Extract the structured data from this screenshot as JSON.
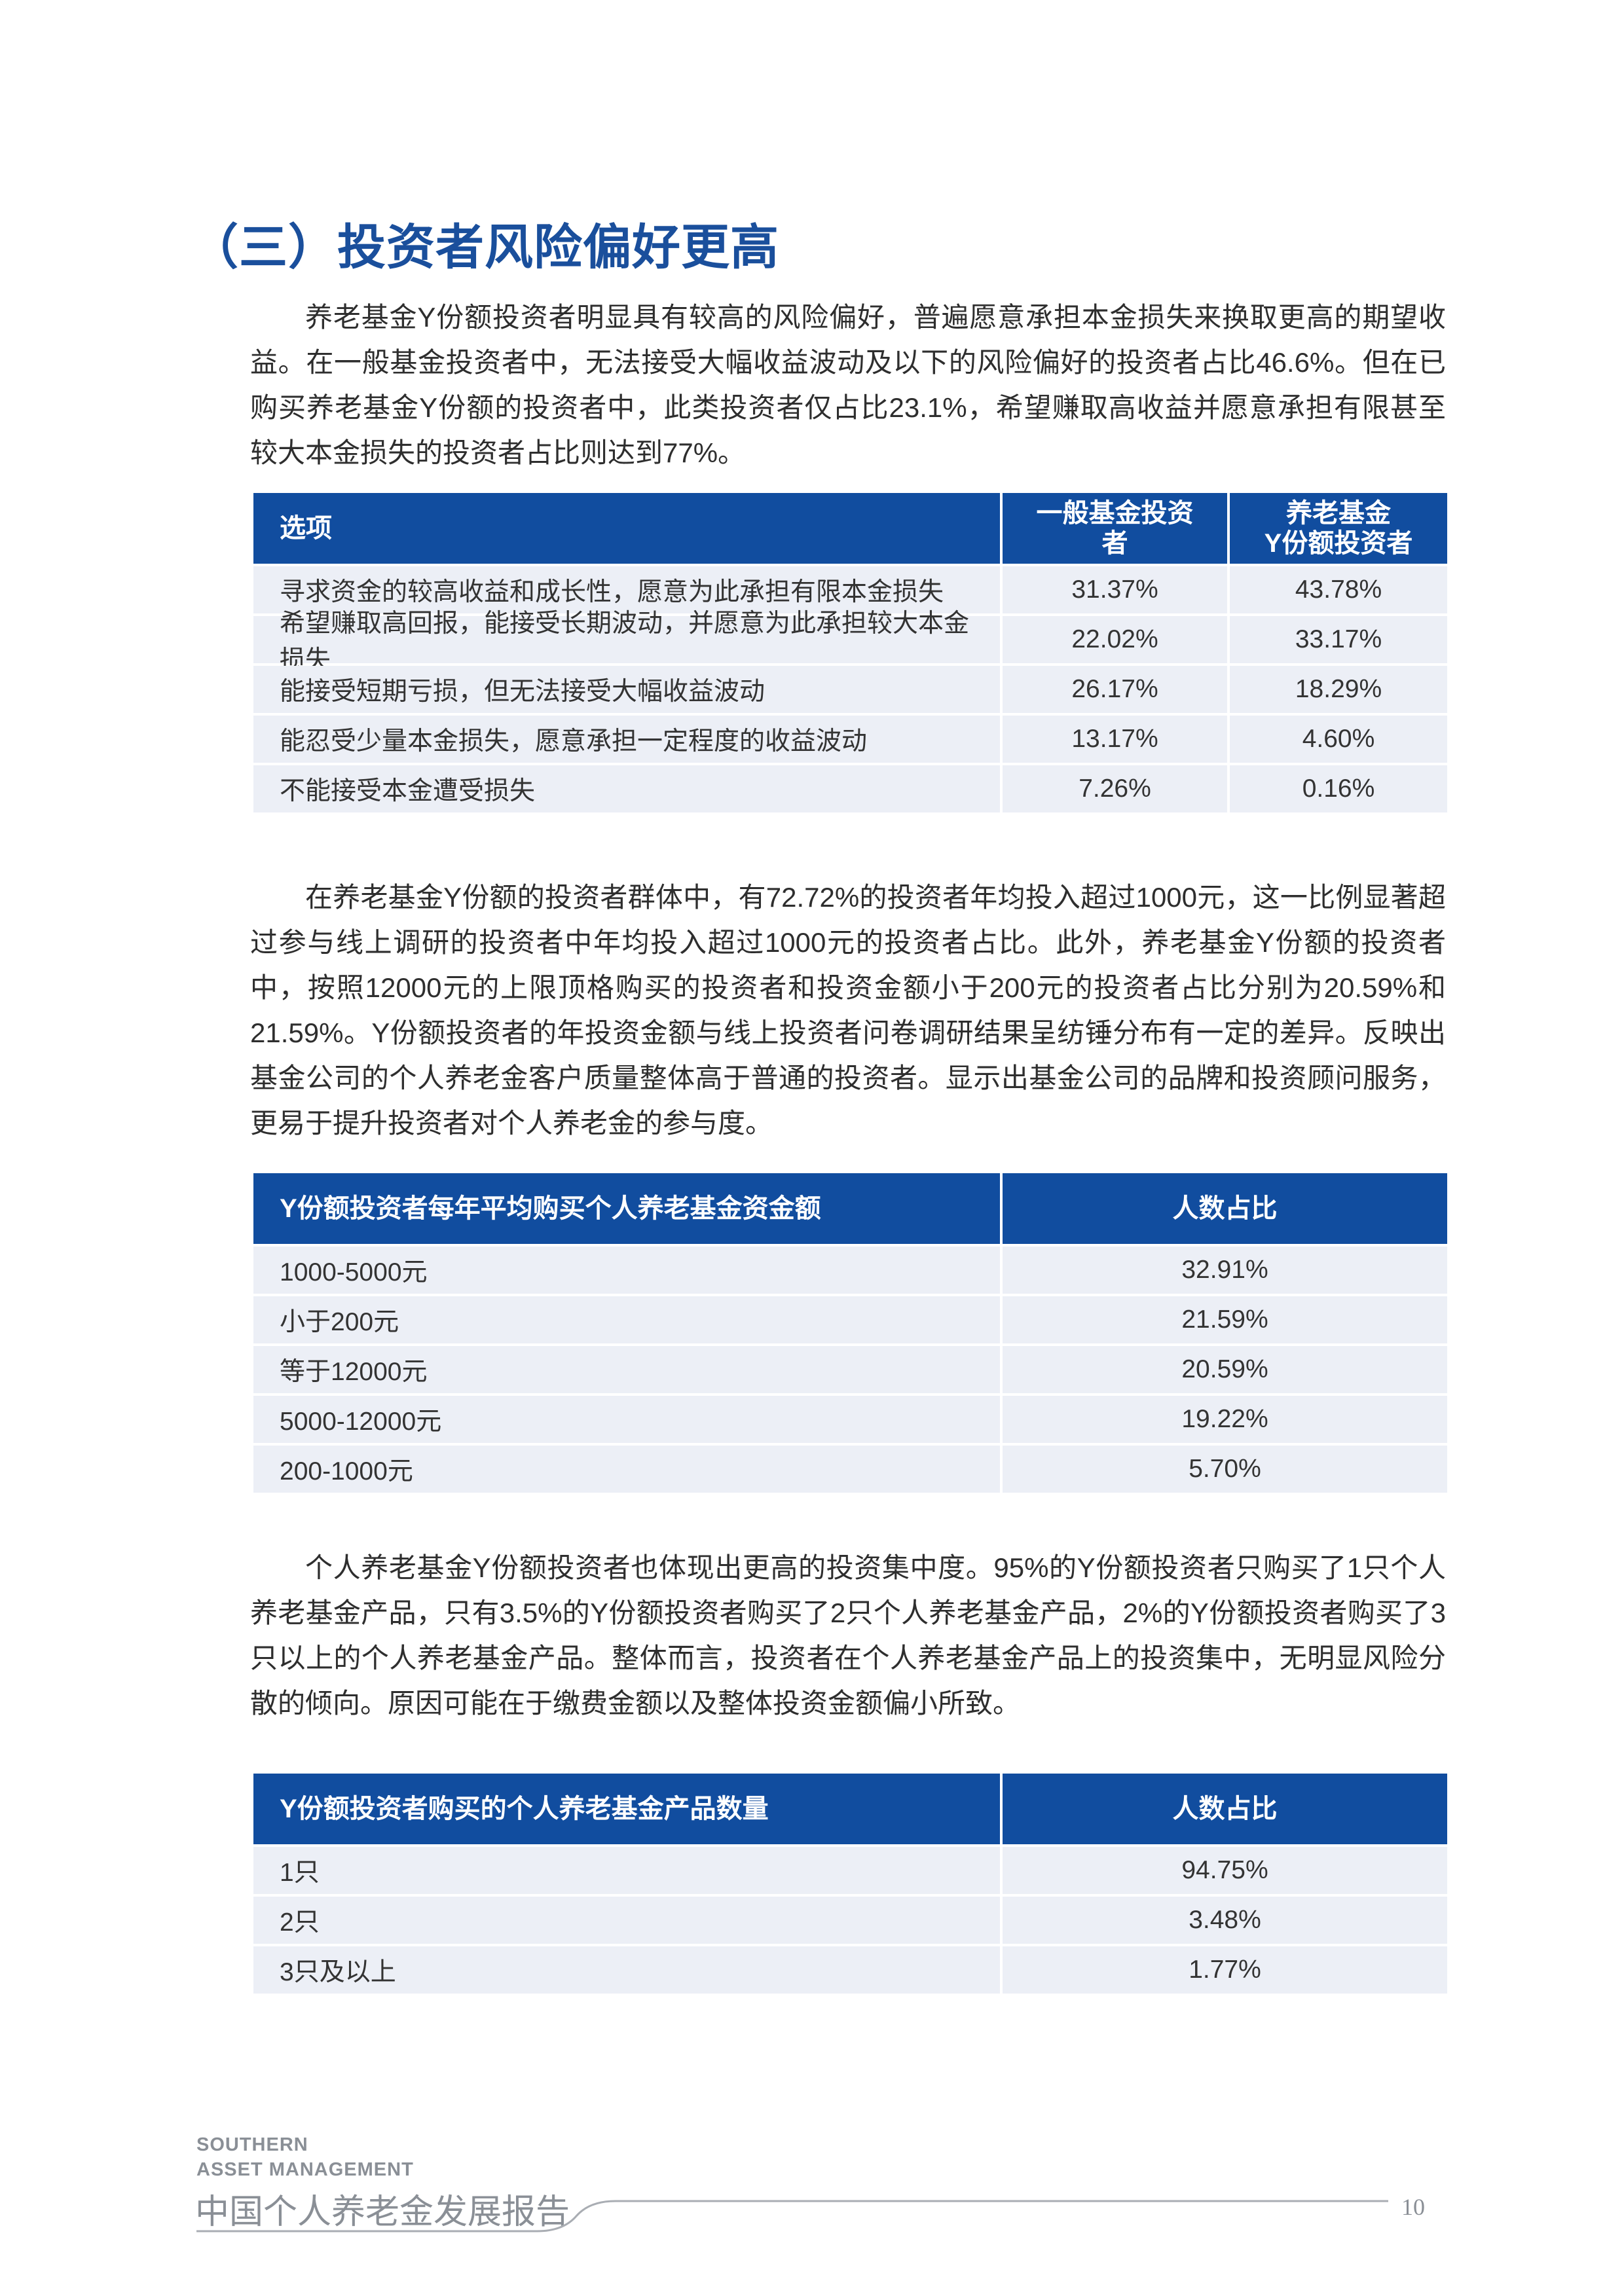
{
  "heading": "（三）投资者风险偏好更高",
  "paragraphs": [
    "养老基金Y份额投资者明显具有较高的风险偏好，普遍愿意承担本金损失来换取更高的期望收益。在一般基金投资者中，无法接受大幅收益波动及以下的风险偏好的投资者占比46.6%。但在已购买养老基金Y份额的投资者中，此类投资者仅占比23.1%，希望赚取高收益并愿意承担有限甚至较大本金损失的投资者占比则达到77%。",
    "在养老基金Y份额的投资者群体中，有72.72%的投资者年均投入超过1000元，这一比例显著超过参与线上调研的投资者中年均投入超过1000元的投资者占比。此外，养老基金Y份额的投资者中，按照12000元的上限顶格购买的投资者和投资金额小于200元的投资者占比分别为20.59%和21.59%。Y份额投资者的年投资金额与线上投资者问卷调研结果呈纺锤分布有一定的差异。反映出基金公司的个人养老金客户质量整体高于普通的投资者。显示出基金公司的品牌和投资顾问服务，更易于提升投资者对个人养老金的参与度。",
    "个人养老基金Y份额投资者也体现出更高的投资集中度。95%的Y份额投资者只购买了1只个人养老基金产品，只有3.5%的Y份额投资者购买了2只个人养老基金产品，2%的Y份额投资者购买了3只以上的个人养老基金产品。整体而言，投资者在个人养老基金产品上的投资集中，无明显风险分散的倾向。原因可能在于缴费金额以及整体投资金额偏小所致。"
  ],
  "tables": [
    {
      "header": [
        "选项",
        "一般基金投资者",
        "养老基金\nY份额投资者"
      ],
      "rows": [
        [
          "寻求资金的较高收益和成长性，愿意为此承担有限本金损失",
          "31.37%",
          "43.78%"
        ],
        [
          "希望赚取高回报，能接受长期波动，并愿意为此承担较大本金损失",
          "22.02%",
          "33.17%"
        ],
        [
          "能接受短期亏损，但无法接受大幅收益波动",
          "26.17%",
          "18.29%"
        ],
        [
          "能忍受少量本金损失，愿意承担一定程度的收益波动",
          "13.17%",
          "4.60%"
        ],
        [
          "不能接受本金遭受损失",
          "7.26%",
          "0.16%"
        ]
      ]
    },
    {
      "header": [
        "Y份额投资者每年平均购买个人养老基金资金额",
        "人数占比"
      ],
      "rows": [
        [
          "1000-5000元",
          "32.91%"
        ],
        [
          "小于200元",
          "21.59%"
        ],
        [
          "等于12000元",
          "20.59%"
        ],
        [
          "5000-12000元",
          "19.22%"
        ],
        [
          "200-1000元",
          "5.70%"
        ]
      ]
    },
    {
      "header": [
        "Y份额投资者购买的个人养老基金产品数量",
        "人数占比"
      ],
      "rows": [
        [
          "1只",
          "94.75%"
        ],
        [
          "2只",
          "3.48%"
        ],
        [
          "3只及以上",
          "1.77%"
        ]
      ]
    }
  ],
  "footer": {
    "brand": [
      "SOUTHERN",
      "ASSET MANAGEMENT"
    ],
    "report_title": "中国个人养老金发展报告",
    "page_number": "10"
  }
}
